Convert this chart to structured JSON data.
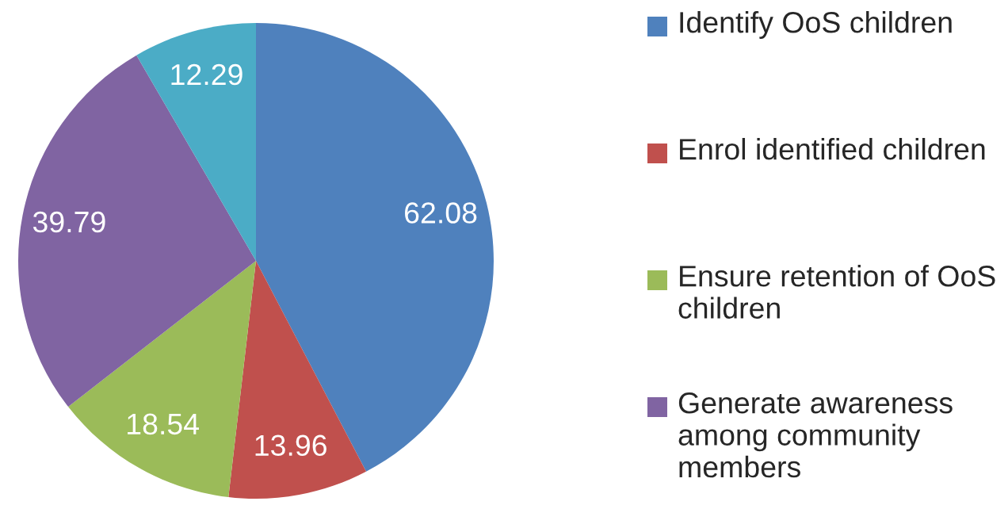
{
  "chart_data": {
    "type": "pie",
    "categories": [
      "Identify OoS children",
      "Enrol identified children",
      "Ensure retention of OoS children",
      "Generate awareness among community members",
      null
    ],
    "values": [
      62.08,
      13.96,
      18.54,
      39.79,
      12.29
    ],
    "colors": [
      "#4f81bd",
      "#c0504d",
      "#9bbb59",
      "#8064a2",
      "#4bacc6"
    ],
    "data_labels": true,
    "legend": "right"
  }
}
